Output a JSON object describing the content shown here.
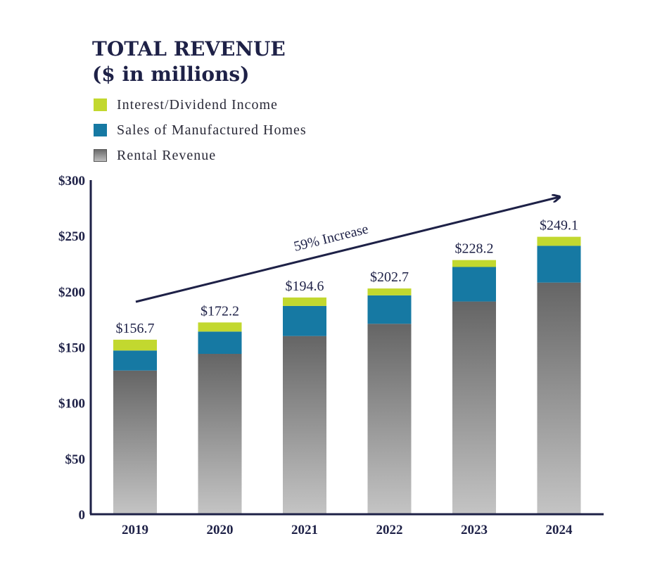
{
  "chart_data": {
    "type": "bar",
    "stacked": true,
    "title": "TOTAL REVENUE",
    "subtitle": "($ in millions)",
    "categories": [
      "2019",
      "2020",
      "2021",
      "2022",
      "2023",
      "2024"
    ],
    "series": [
      {
        "name": "Rental Revenue",
        "values": [
          129.0,
          144.0,
          160.0,
          171.0,
          191.0,
          208.0
        ],
        "color": "#777777"
      },
      {
        "name": "Sales of Manufactured Homes",
        "values": [
          18.0,
          20.0,
          27.0,
          25.5,
          31.0,
          33.0
        ],
        "color": "#1679a3"
      },
      {
        "name": "Interest/Dividend Income",
        "values": [
          9.7,
          8.2,
          7.6,
          6.2,
          6.2,
          8.1
        ],
        "color": "#c2d82f"
      }
    ],
    "totals": [
      "$156.7",
      "$172.2",
      "$194.6",
      "$202.7",
      "$228.2",
      "$249.1"
    ],
    "total_values": [
      156.7,
      172.2,
      194.6,
      202.7,
      228.2,
      249.1
    ],
    "ylim": [
      0,
      300
    ],
    "yticks": [
      {
        "value": 0,
        "label": "0"
      },
      {
        "value": 50,
        "label": "$50"
      },
      {
        "value": 100,
        "label": "$100"
      },
      {
        "value": 150,
        "label": "$150"
      },
      {
        "value": 200,
        "label": "$200"
      },
      {
        "value": 250,
        "label": "$250"
      },
      {
        "value": 300,
        "label": "$300"
      }
    ],
    "legend": [
      {
        "label": "Interest/Dividend Income"
      },
      {
        "label": "Sales of Manufactured Homes"
      },
      {
        "label": "Rental Revenue"
      }
    ],
    "annotation": "59% Increase",
    "xlabel": "",
    "ylabel": ""
  }
}
